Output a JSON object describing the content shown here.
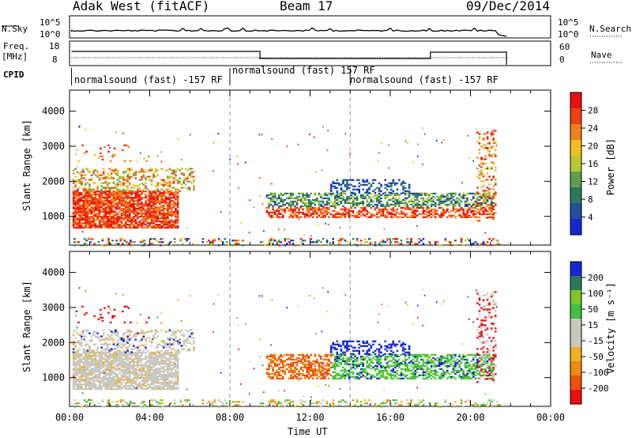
{
  "header": {
    "station": "Adak West (fitACF)",
    "beam": "Beam 17",
    "date": "09/Dec/2014"
  },
  "panels": {
    "nsky": {
      "label": "N.Sky",
      "ticks": [
        "10^5",
        "10^0"
      ],
      "right_label": "N.Search",
      "right_ticks": [
        "10^5",
        "10^0"
      ]
    },
    "freq": {
      "label_line1": "Freq.",
      "label_line2": "[MHz]",
      "ticks": [
        "18",
        "8"
      ],
      "right_label": "Nave",
      "right_ticks": [
        "60",
        "0"
      ]
    },
    "cpid": {
      "label": "CPID",
      "segments": [
        "normalsound (fast) -157 RF",
        "normalsound (fast) 157 RF",
        "normalsound (fast) -157 RF"
      ]
    }
  },
  "colors": {
    "power_scale": [
      "#1428d2",
      "#2050a0",
      "#2a7a5a",
      "#5aa050",
      "#b8c830",
      "#f0c020",
      "#f08020",
      "#ee4010",
      "#e81010"
    ],
    "velocity_scale": [
      "#e81010",
      "#ee5010",
      "#f08a10",
      "#f0b020",
      "#c8c8c0",
      "#c8c8c0",
      "#40c040",
      "#78c828",
      "#2a7a5a",
      "#1428d2"
    ]
  },
  "chart_data": [
    {
      "type": "heatmap",
      "title": "",
      "ylabel": "Slant Range [km]",
      "yticks": [
        "1000",
        "2000",
        "3000",
        "4000"
      ],
      "ylim": [
        180,
        4600
      ],
      "xlim": [
        "00:00",
        "24:00"
      ],
      "colorbar": {
        "label": "Power [dB]",
        "ticks": [
          "28",
          "24",
          "20",
          "16",
          "12",
          "8",
          "4"
        ],
        "range": [
          0,
          30
        ]
      }
    },
    {
      "type": "heatmap",
      "title": "",
      "ylabel": "Slant Range [km]",
      "yticks": [
        "1000",
        "2000",
        "3000",
        "4000"
      ],
      "ylim": [
        180,
        4600
      ],
      "xlim": [
        "00:00",
        "24:00"
      ],
      "colorbar": {
        "label": "Velocity [m s⁻¹]",
        "ticks": [
          "200",
          "100",
          "50",
          "15",
          "-15",
          "-50",
          "-100",
          "-200"
        ]
      }
    }
  ],
  "xaxis": {
    "label": "Time UT",
    "ticks": [
      "00:00",
      "04:00",
      "08:00",
      "12:00",
      "16:00",
      "20:00",
      "00:00"
    ]
  }
}
